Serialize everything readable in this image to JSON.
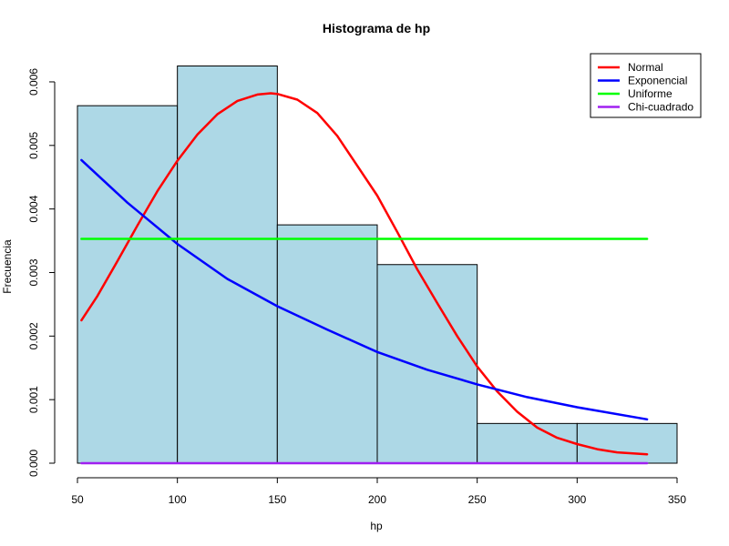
{
  "chart_data": {
    "type": "bar",
    "title": "Histograma de hp",
    "xlabel": "hp",
    "ylabel": "Frecuencia",
    "xlim": [
      50,
      350
    ],
    "ylim": [
      0,
      0.0062
    ],
    "x_ticks": [
      50,
      100,
      150,
      200,
      250,
      300,
      350
    ],
    "x_tick_labels": [
      "50",
      "100",
      "150",
      "200",
      "250",
      "300",
      "350"
    ],
    "y_ticks": [
      0,
      0.001,
      0.002,
      0.003,
      0.004,
      0.005,
      0.006
    ],
    "y_tick_labels": [
      "0.000",
      "0.001",
      "0.002",
      "0.003",
      "0.004",
      "0.005",
      "0.006"
    ],
    "histogram": {
      "bins": [
        [
          50,
          100
        ],
        [
          100,
          150
        ],
        [
          150,
          200
        ],
        [
          200,
          250
        ],
        [
          250,
          300
        ],
        [
          300,
          350
        ]
      ],
      "values": [
        0.005625,
        0.00625,
        0.00375,
        0.003125,
        0.000625,
        0.000625
      ],
      "fill": "#ADD8E6",
      "stroke": "#000000"
    },
    "series": [
      {
        "name": "Normal",
        "color": "#FF0000",
        "x": [
          52,
          60,
          70,
          80,
          90,
          100,
          110,
          120,
          130,
          140,
          146.7,
          150,
          160,
          170,
          180,
          190,
          200,
          210,
          220,
          230,
          240,
          250,
          260,
          270,
          280,
          290,
          300,
          310,
          320,
          335
        ],
        "y": [
          0.00225,
          0.00263,
          0.00318,
          0.00374,
          0.00428,
          0.00476,
          0.00517,
          0.00549,
          0.0057,
          0.0058,
          0.00582,
          0.00581,
          0.00572,
          0.00551,
          0.00515,
          0.00468,
          0.00421,
          0.00364,
          0.00305,
          0.00252,
          0.002,
          0.00152,
          0.00113,
          0.00081,
          0.00056,
          0.0004,
          0.0003,
          0.00022,
          0.00017,
          0.00014
        ]
      },
      {
        "name": "Exponencial",
        "color": "#0000FF",
        "x": [
          52,
          75,
          100,
          125,
          150,
          175,
          200,
          225,
          250,
          275,
          300,
          335
        ],
        "y": [
          0.00477,
          0.0041,
          0.00345,
          0.0029,
          0.00247,
          0.0021,
          0.00175,
          0.00147,
          0.00124,
          0.00104,
          0.00088,
          0.00069
        ]
      },
      {
        "name": "Uniforme",
        "color": "#00FF00",
        "x": [
          52,
          335
        ],
        "y": [
          0.00353,
          0.00353
        ]
      },
      {
        "name": "Chi-cuadrado",
        "color": "#A020F0",
        "x": [
          52,
          335
        ],
        "y": [
          0,
          0
        ]
      }
    ],
    "legend_position": "top-right",
    "grid": false
  }
}
